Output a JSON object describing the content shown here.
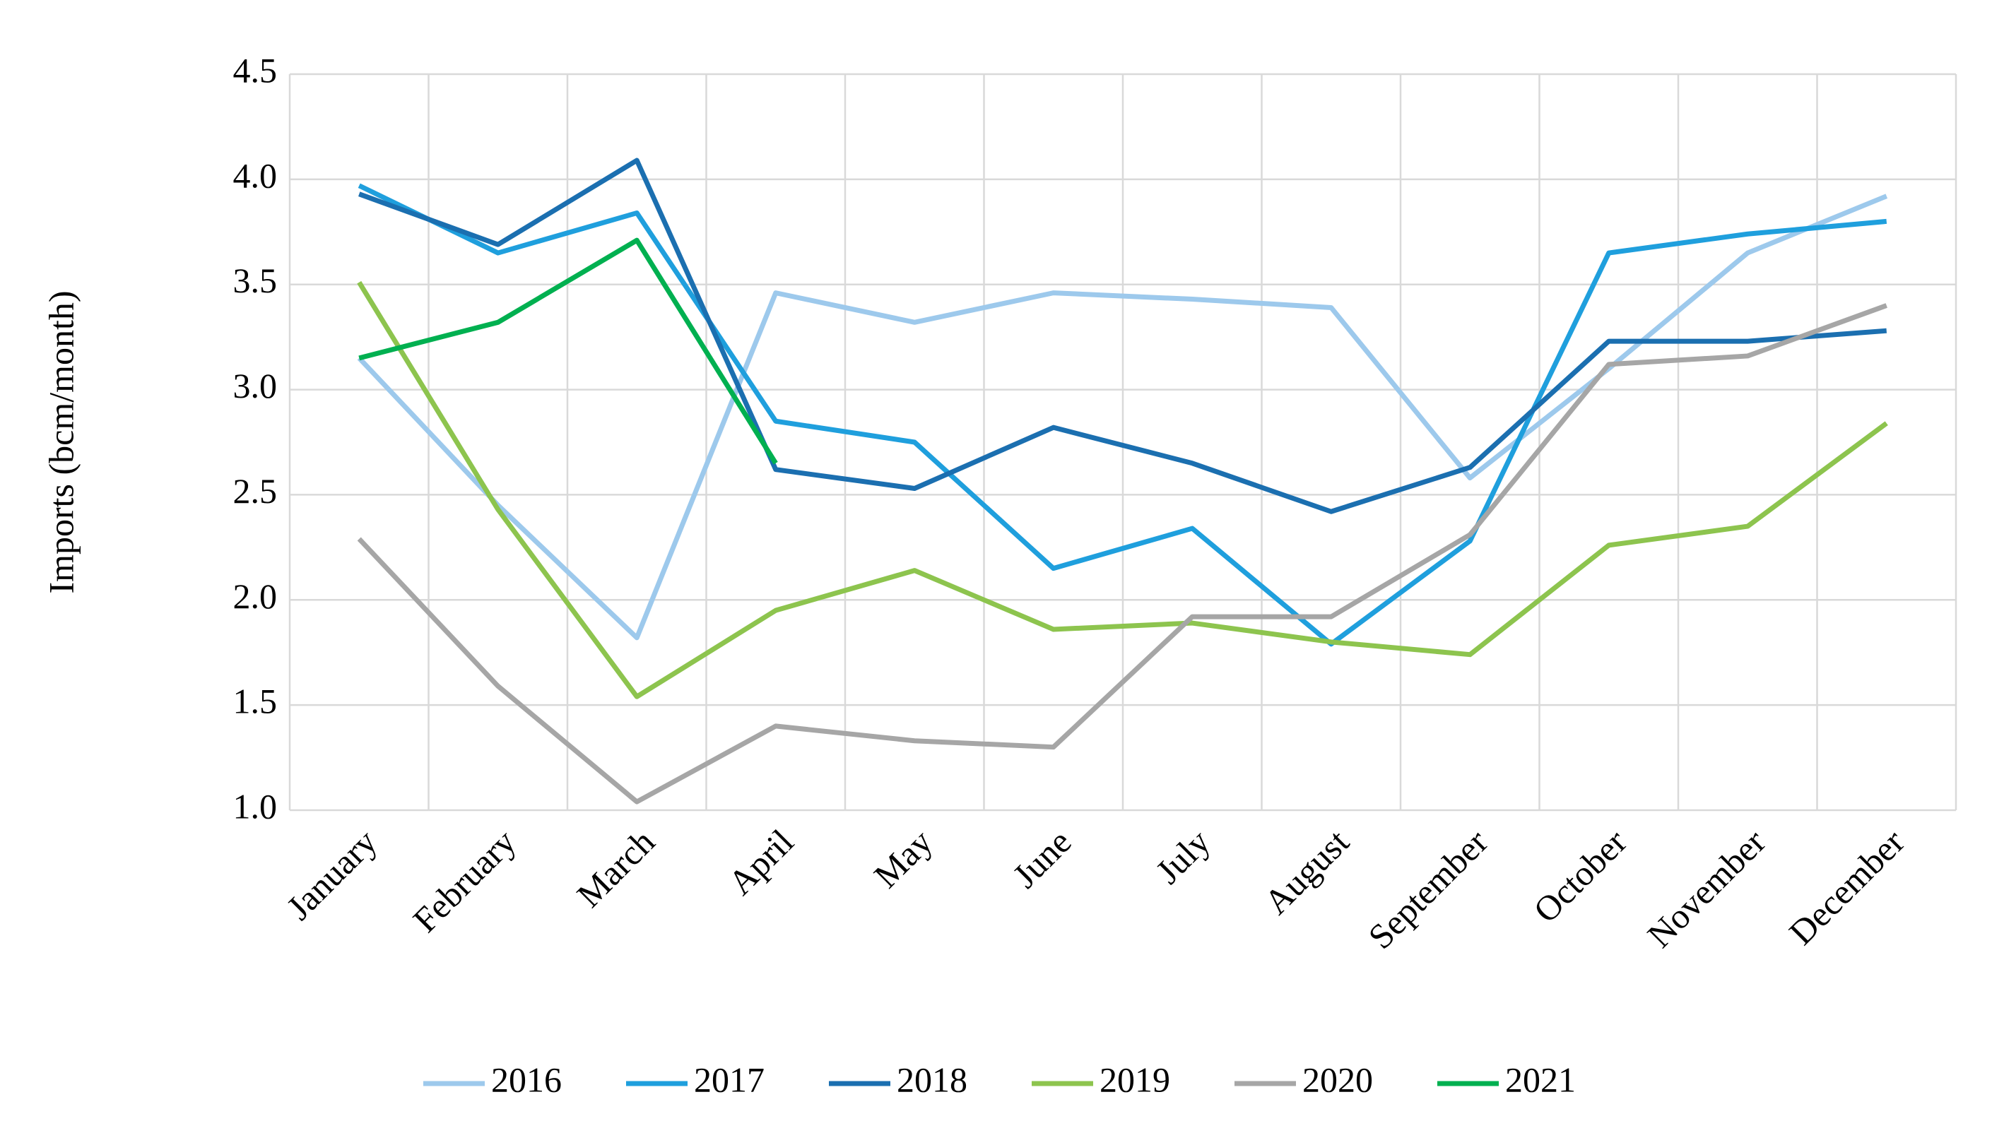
{
  "chart_data": {
    "type": "line",
    "y_label": "Imports (bcm/month)",
    "categories": [
      "January",
      "February",
      "March",
      "April",
      "May",
      "June",
      "July",
      "August",
      "September",
      "October",
      "November",
      "December"
    ],
    "series": [
      {
        "name": "2016",
        "color": "#9dc9ec",
        "values": [
          3.15,
          2.45,
          1.82,
          3.46,
          3.32,
          3.46,
          3.43,
          3.39,
          2.58,
          3.1,
          3.65,
          3.92
        ]
      },
      {
        "name": "2017",
        "color": "#1f9fdd",
        "values": [
          3.97,
          3.65,
          3.84,
          2.85,
          2.75,
          2.15,
          2.34,
          1.79,
          2.28,
          3.65,
          3.74,
          3.8
        ]
      },
      {
        "name": "2018",
        "color": "#1b6fb0",
        "values": [
          3.93,
          3.69,
          4.09,
          2.62,
          2.53,
          2.82,
          2.65,
          2.42,
          2.63,
          3.23,
          3.23,
          3.28
        ]
      },
      {
        "name": "2019",
        "color": "#8dc44e",
        "values": [
          3.51,
          2.43,
          1.54,
          1.95,
          2.14,
          1.86,
          1.89,
          1.8,
          1.74,
          2.26,
          2.35,
          2.84
        ]
      },
      {
        "name": "2020",
        "color": "#a6a6a6",
        "values": [
          2.29,
          1.59,
          1.04,
          1.4,
          1.33,
          1.3,
          1.92,
          1.92,
          2.31,
          3.12,
          3.16,
          3.4
        ]
      },
      {
        "name": "2021",
        "color": "#00b050",
        "values": [
          3.15,
          3.32,
          3.71,
          2.65,
          null,
          null,
          null,
          null,
          null,
          null,
          null,
          null
        ]
      }
    ],
    "ylim": [
      1,
      4.5
    ],
    "yticks": [
      {
        "value": 1,
        "label": "1.0"
      },
      1.5,
      {
        "value": 2,
        "label": "2.0"
      },
      2.5,
      {
        "value": 3,
        "label": "3.0"
      },
      3.5,
      {
        "value": 4,
        "label": "4.0"
      },
      4.5
    ],
    "grid": true,
    "legend": "bottom"
  }
}
